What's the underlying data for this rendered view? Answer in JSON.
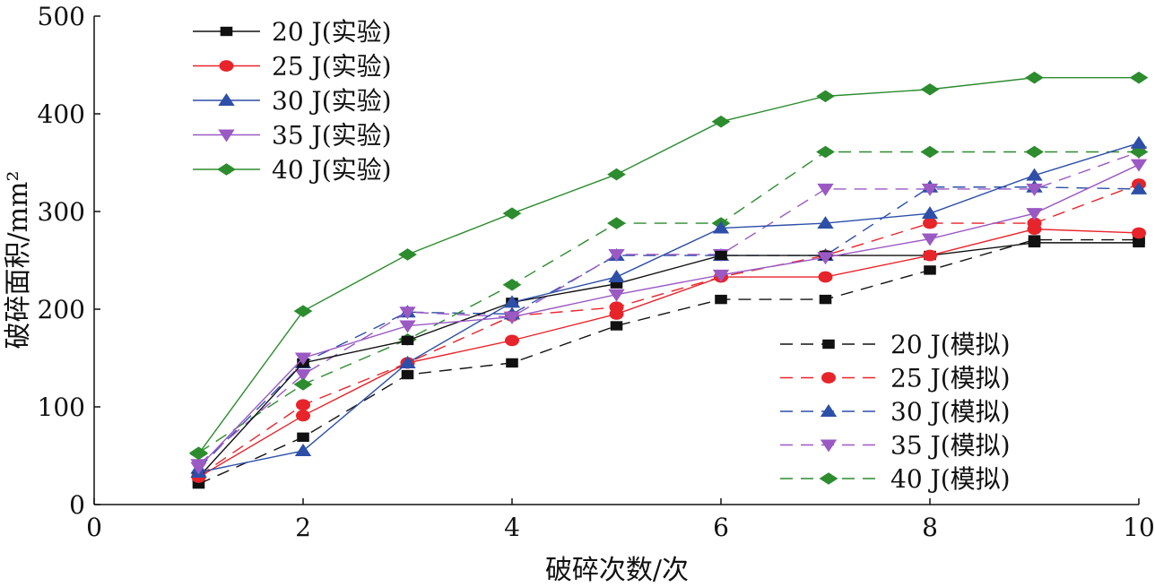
{
  "chart_data": {
    "type": "line",
    "xlabel": "破碎次数/次",
    "ylabel": "破碎面积/mm²",
    "xlim": [
      0,
      10
    ],
    "ylim": [
      0,
      500
    ],
    "xticks": [
      "0",
      "2",
      "4",
      "6",
      "8",
      "10"
    ],
    "yticks": [
      "0",
      "100",
      "200",
      "300",
      "400",
      "500"
    ],
    "grid": false,
    "legends": [
      {
        "placement": "top-left",
        "entries": [
          "20 J(实验)",
          "25 J(实验)",
          "30 J(实验)",
          "35 J(实验)",
          "40 J(实验)"
        ]
      },
      {
        "placement": "bottom-right",
        "entries": [
          "20 J(模拟)",
          "25 J(模拟)",
          "30 J(模拟)",
          "35 J(模拟)",
          "40 J(模拟)"
        ]
      }
    ],
    "x": [
      1,
      2,
      3,
      4,
      5,
      6,
      7,
      8,
      9,
      10
    ],
    "series": [
      {
        "name": "20 J(实验)",
        "color": "#111111",
        "marker": "square",
        "dash": false,
        "values": [
          28,
          145,
          168,
          207,
          226,
          255,
          255,
          255,
          268,
          268
        ]
      },
      {
        "name": "25 J(实验)",
        "color": "#e8242b",
        "marker": "circle",
        "dash": false,
        "values": [
          28,
          91,
          145,
          168,
          195,
          233,
          233,
          255,
          282,
          278
        ]
      },
      {
        "name": "30 J(实验)",
        "color": "#2d4fa8",
        "marker": "triangle-up",
        "dash": false,
        "values": [
          33,
          55,
          145,
          207,
          233,
          283,
          288,
          298,
          337,
          370
        ]
      },
      {
        "name": "35 J(实验)",
        "color": "#9b59c4",
        "marker": "triangle-down",
        "dash": false,
        "values": [
          38,
          150,
          183,
          192,
          215,
          235,
          253,
          272,
          298,
          348
        ]
      },
      {
        "name": "40 J(实验)",
        "color": "#2c8c2e",
        "marker": "diamond",
        "dash": false,
        "values": [
          52,
          198,
          256,
          298,
          338,
          392,
          418,
          425,
          437,
          437
        ]
      },
      {
        "name": "20 J(模拟)",
        "color": "#111111",
        "marker": "square",
        "dash": true,
        "values": [
          21,
          69,
          133,
          145,
          183,
          210,
          210,
          240,
          271,
          271
        ]
      },
      {
        "name": "25 J(模拟)",
        "color": "#e8242b",
        "marker": "circle",
        "dash": true,
        "values": [
          29,
          102,
          145,
          193,
          202,
          233,
          255,
          288,
          288,
          328
        ]
      },
      {
        "name": "30 J(模拟)",
        "color": "#2d4fa8",
        "marker": "triangle-up",
        "dash": true,
        "values": [
          37,
          145,
          197,
          195,
          255,
          255,
          255,
          325,
          325,
          323
        ]
      },
      {
        "name": "35 J(模拟)",
        "color": "#9b59c4",
        "marker": "triangle-down",
        "dash": true,
        "values": [
          41,
          133,
          197,
          192,
          256,
          256,
          323,
          323,
          323,
          361
        ]
      },
      {
        "name": "40 J(模拟)",
        "color": "#2c8c2e",
        "marker": "diamond",
        "dash": true,
        "values": [
          53,
          123,
          169,
          225,
          288,
          288,
          361,
          361,
          361,
          361
        ]
      }
    ]
  }
}
